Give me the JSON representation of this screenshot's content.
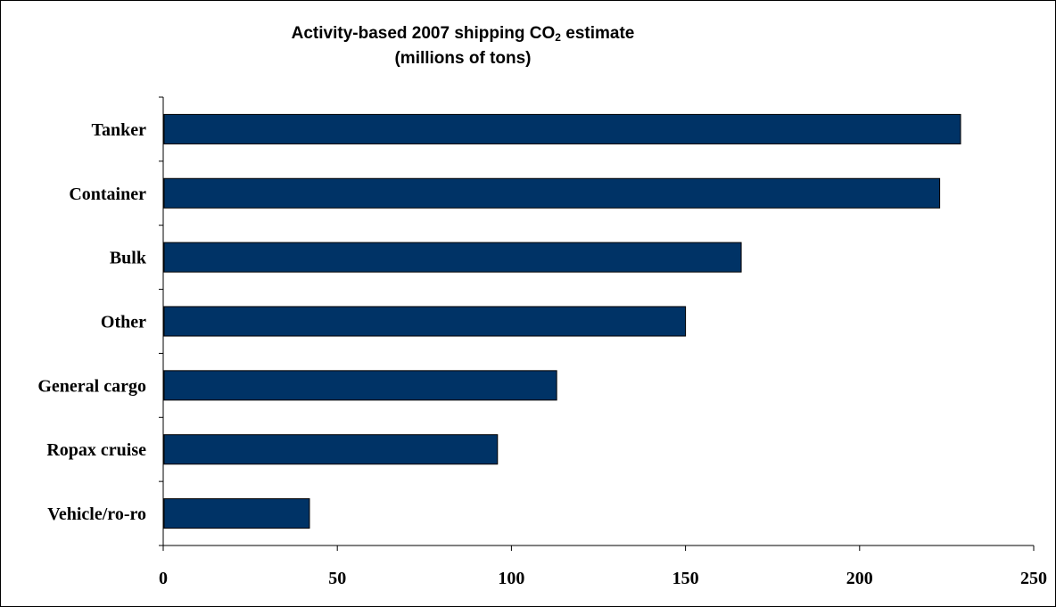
{
  "chart_data": {
    "type": "bar",
    "orientation": "horizontal",
    "title": {
      "prefix": "Activity-based 2007 shipping CO",
      "subscript": "2",
      "suffix": " estimate",
      "line2": "(millions of tons)"
    },
    "categories": [
      "Tanker",
      "Container",
      "Bulk",
      "Other",
      "General cargo",
      "Ropax cruise",
      "Vehicle/ro-ro"
    ],
    "values": [
      229,
      223,
      166,
      150,
      113,
      96,
      42
    ],
    "xlim": [
      0,
      250
    ],
    "x_ticks": [
      0,
      50,
      100,
      150,
      200,
      250
    ],
    "xlabel": "",
    "ylabel": "",
    "grid": false,
    "legend": "none",
    "colors": {
      "bar_fill": "#003366",
      "bar_stroke": "#000000",
      "axis": "#000000"
    }
  }
}
